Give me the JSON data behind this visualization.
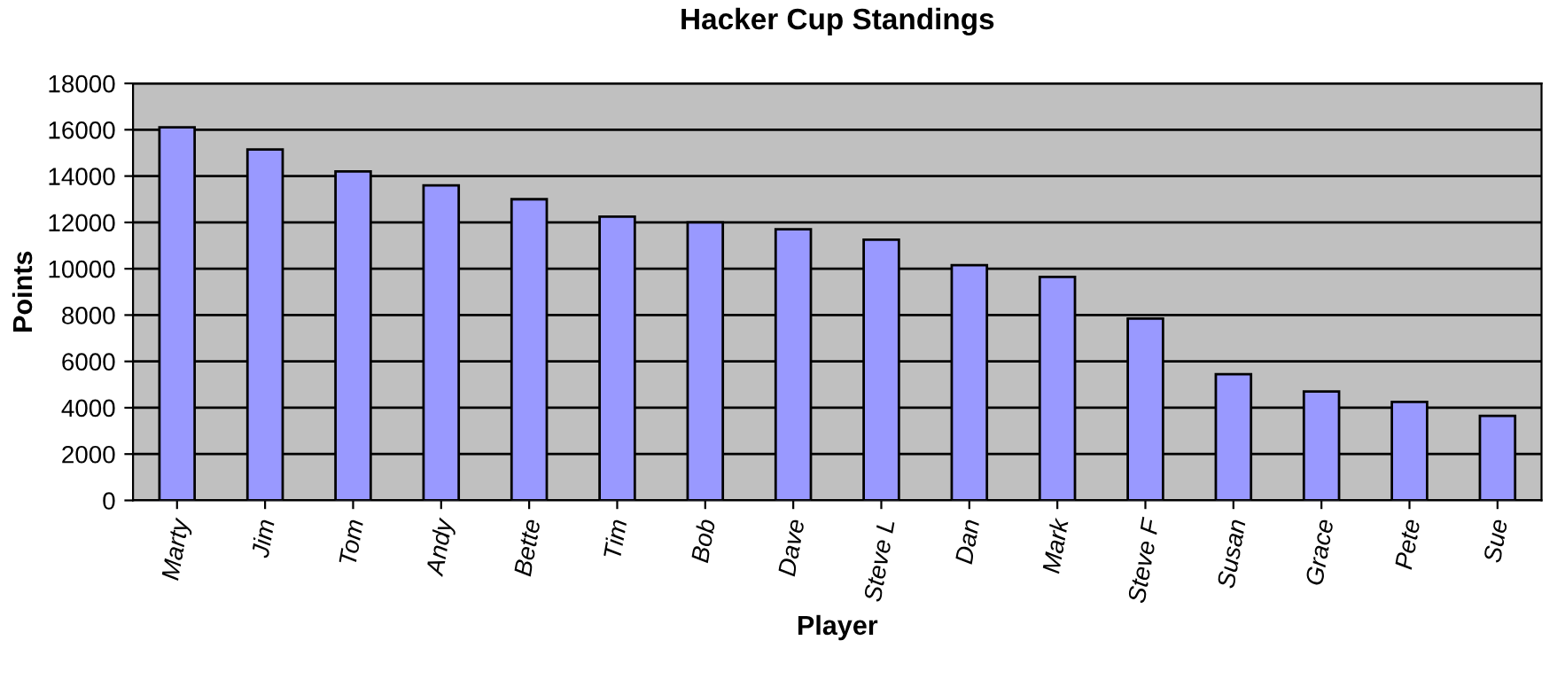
{
  "chart_data": {
    "type": "bar",
    "title": "Hacker Cup Standings",
    "xlabel": "Player",
    "ylabel": "Points",
    "categories": [
      "Marty",
      "Jim",
      "Tom",
      "Andy",
      "Bette",
      "Tim",
      "Bob",
      "Dave",
      "Steve L",
      "Dan",
      "Mark",
      "Steve F",
      "Susan",
      "Grace",
      "Pete",
      "Sue"
    ],
    "values": [
      16100,
      15150,
      14200,
      13600,
      13000,
      12250,
      12000,
      11700,
      11250,
      10150,
      9650,
      7850,
      5450,
      4700,
      4250,
      3650
    ],
    "color": "#9999ff",
    "ylim": [
      0,
      18000
    ],
    "yticks": [
      0,
      2000,
      4000,
      6000,
      8000,
      10000,
      12000,
      14000,
      16000,
      18000
    ],
    "grid": "y"
  }
}
